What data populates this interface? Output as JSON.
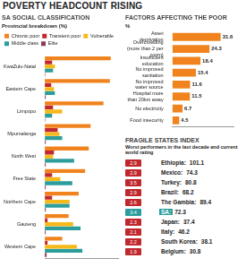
{
  "title": "POVERTY HEADCOUNT RISING",
  "chart_data": [
    {
      "type": "bar",
      "orientation": "horizontal",
      "title": "SA SOCIAL CLASSIFICATION",
      "subtitle": "Provincial breakdown (%)",
      "categories": [
        "KwaZulu-Natal",
        "Eastern Cape",
        "Limpopo",
        "Mpumalanga",
        "North West",
        "Free State",
        "Northern Cape",
        "Gauteng",
        "Western Cape"
      ],
      "series": [
        {
          "name": "Chronic poor",
          "color": "#f0831e",
          "values": [
            72,
            71,
            64,
            50,
            48,
            44,
            37,
            26,
            19
          ]
        },
        {
          "name": "Transient poor",
          "color": "#c0282d",
          "values": [
            8,
            7,
            9,
            14,
            10,
            8,
            8,
            3,
            3
          ]
        },
        {
          "name": "Vulnerable",
          "color": "#f6b91a",
          "values": [
            11,
            10,
            19,
            16,
            9,
            17,
            27,
            31,
            35
          ]
        },
        {
          "name": "Middle class",
          "color": "#2a9d9c",
          "values": [
            9,
            11,
            8,
            19,
            32,
            30,
            27,
            39,
            41
          ]
        },
        {
          "name": "Elite",
          "color": "#8e3a59",
          "values": [
            0.5,
            1,
            0.5,
            1,
            1,
            1,
            1,
            1,
            2
          ]
        }
      ],
      "xlim": [
        0,
        80
      ],
      "grid": false,
      "legend": "top",
      "tick_labels": "y",
      "data_labels": false
    },
    {
      "type": "bar",
      "orientation": "horizontal",
      "title": "FACTORS AFFECTING THE POOR",
      "subtitle": "%",
      "categories": [
        "Asset deprivation",
        "Overcrowding (more than 2 per room)",
        "Insufficient education",
        "No improved sanitation",
        "No improved water source",
        "Hospital more than 20km away",
        "No electricity",
        "Food insecurity"
      ],
      "values": [
        31.6,
        24.3,
        18.4,
        15.4,
        11.6,
        11.5,
        6.7,
        4.5
      ],
      "color": "#f0831e",
      "xlim": [
        0,
        40
      ],
      "grid": false,
      "tick_labels": "y",
      "data_labels": true
    }
  ],
  "fragile_states": {
    "title": "FRAGILE STATES INDEX",
    "subtitle": "Worst performers in the last decade and current world rating",
    "rows": [
      {
        "change": 2.9,
        "label": "Ethiopia:",
        "score": 101.1
      },
      {
        "change": 2.9,
        "label": "Mexico:",
        "score": 74.3
      },
      {
        "change": 3.5,
        "label": "Turkey:",
        "score": 80.8
      },
      {
        "change": 2.9,
        "label": "Brazil:",
        "score": 68.2
      },
      {
        "change": 2.6,
        "label": "The Gambia:",
        "score": 89.4
      },
      {
        "change": 3.4,
        "label": "SA:",
        "score": 72.3
      },
      {
        "change": 2.3,
        "label": "Japan:",
        "score": 37.4
      },
      {
        "change": 2.1,
        "label": "Italy:",
        "score": 46.2
      },
      {
        "change": 2.2,
        "label": "South Korea:",
        "score": 38.1
      },
      {
        "change": 1.9,
        "label": "Belgium:",
        "score": 30.8
      }
    ],
    "colors": [
      "#c0282d",
      "#c0282d",
      "#c0282d",
      "#c0282d",
      "#c0282d",
      "#2a9d9c",
      "#c0282d",
      "#c0282d",
      "#c0282d",
      "#c0282d"
    ]
  }
}
